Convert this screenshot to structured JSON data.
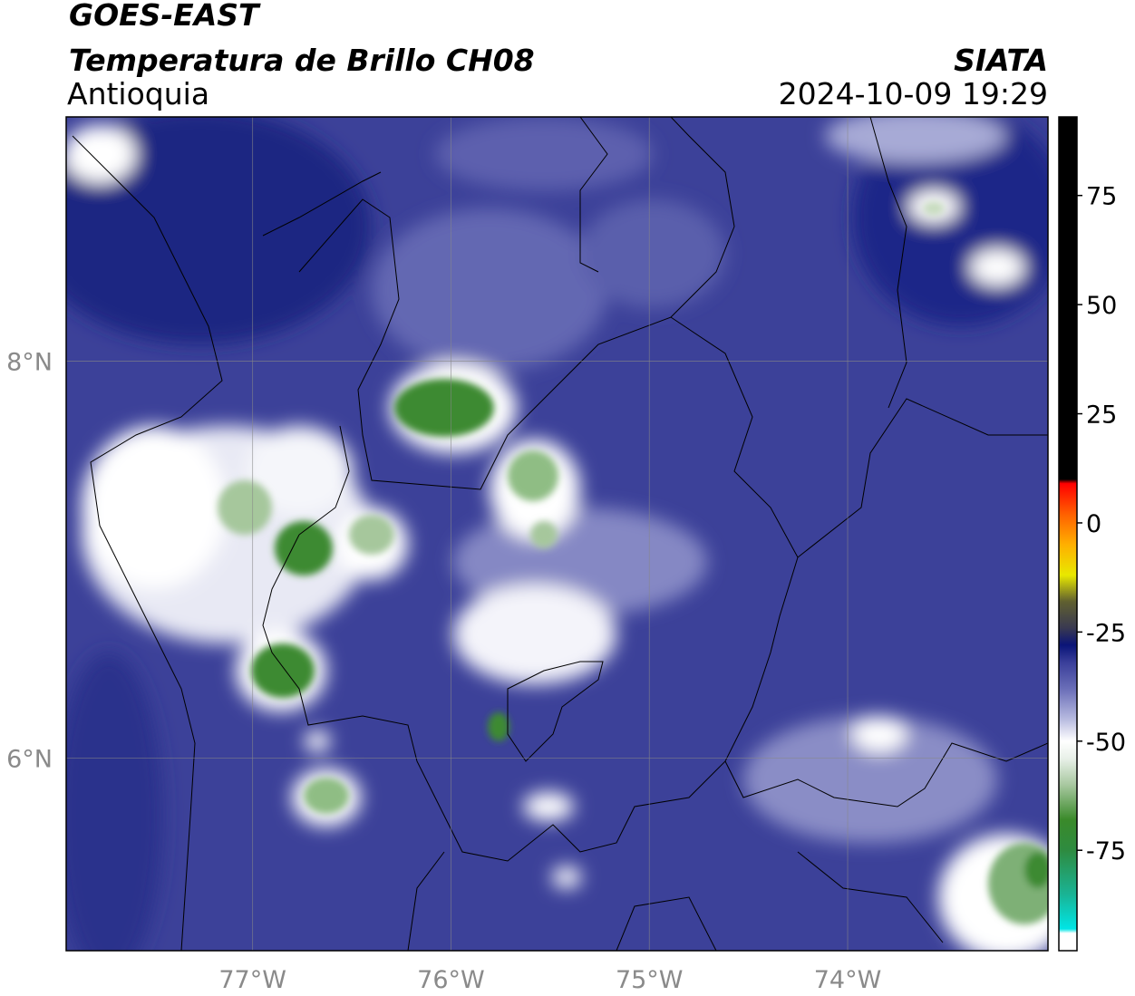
{
  "header": {
    "satellite": "GOES-EAST",
    "product": "Temperatura de Brillo CH08",
    "region": "Antioquia",
    "source": "SIATA",
    "datetime": "2024-10-09 19:29"
  },
  "map": {
    "xlim": [
      -77.94,
      -72.99
    ],
    "ylim": [
      5.03,
      9.23
    ],
    "xticks": [
      {
        "value": -77,
        "label": "77°W"
      },
      {
        "value": -76,
        "label": "76°W"
      },
      {
        "value": -75,
        "label": "75°W"
      },
      {
        "value": -74,
        "label": "74°W"
      }
    ],
    "yticks": [
      {
        "value": 6,
        "label": "6°N"
      },
      {
        "value": 8,
        "label": "8°N"
      }
    ],
    "grid": true
  },
  "colorbar": {
    "lim": [
      -98,
      93
    ],
    "ticks": [
      -75,
      -50,
      -25,
      0,
      25,
      50,
      75
    ],
    "colors": [
      {
        "value": -98,
        "color": "#ffffff"
      },
      {
        "value": -94,
        "color": "#ffffff"
      },
      {
        "value": -93,
        "color": "#00e5e5"
      },
      {
        "value": -85,
        "color": "#1ab394"
      },
      {
        "value": -75,
        "color": "#2e8b40"
      },
      {
        "value": -68,
        "color": "#3a8a2a"
      },
      {
        "value": -60,
        "color": "#a8c8a0"
      },
      {
        "value": -54,
        "color": "#e8f0e8"
      },
      {
        "value": -50,
        "color": "#ffffff"
      },
      {
        "value": -45,
        "color": "#b8bbe0"
      },
      {
        "value": -38,
        "color": "#6a6eb8"
      },
      {
        "value": -32,
        "color": "#3a3f9a"
      },
      {
        "value": -28,
        "color": "#0a1478"
      },
      {
        "value": -24,
        "color": "#3a3a50"
      },
      {
        "value": -18,
        "color": "#606030"
      },
      {
        "value": -12,
        "color": "#e8e800"
      },
      {
        "value": -5,
        "color": "#ffb000"
      },
      {
        "value": 2,
        "color": "#ff6000"
      },
      {
        "value": 9,
        "color": "#ff0000"
      },
      {
        "value": 10,
        "color": "#000000"
      },
      {
        "value": 93,
        "color": "#000000"
      }
    ]
  }
}
